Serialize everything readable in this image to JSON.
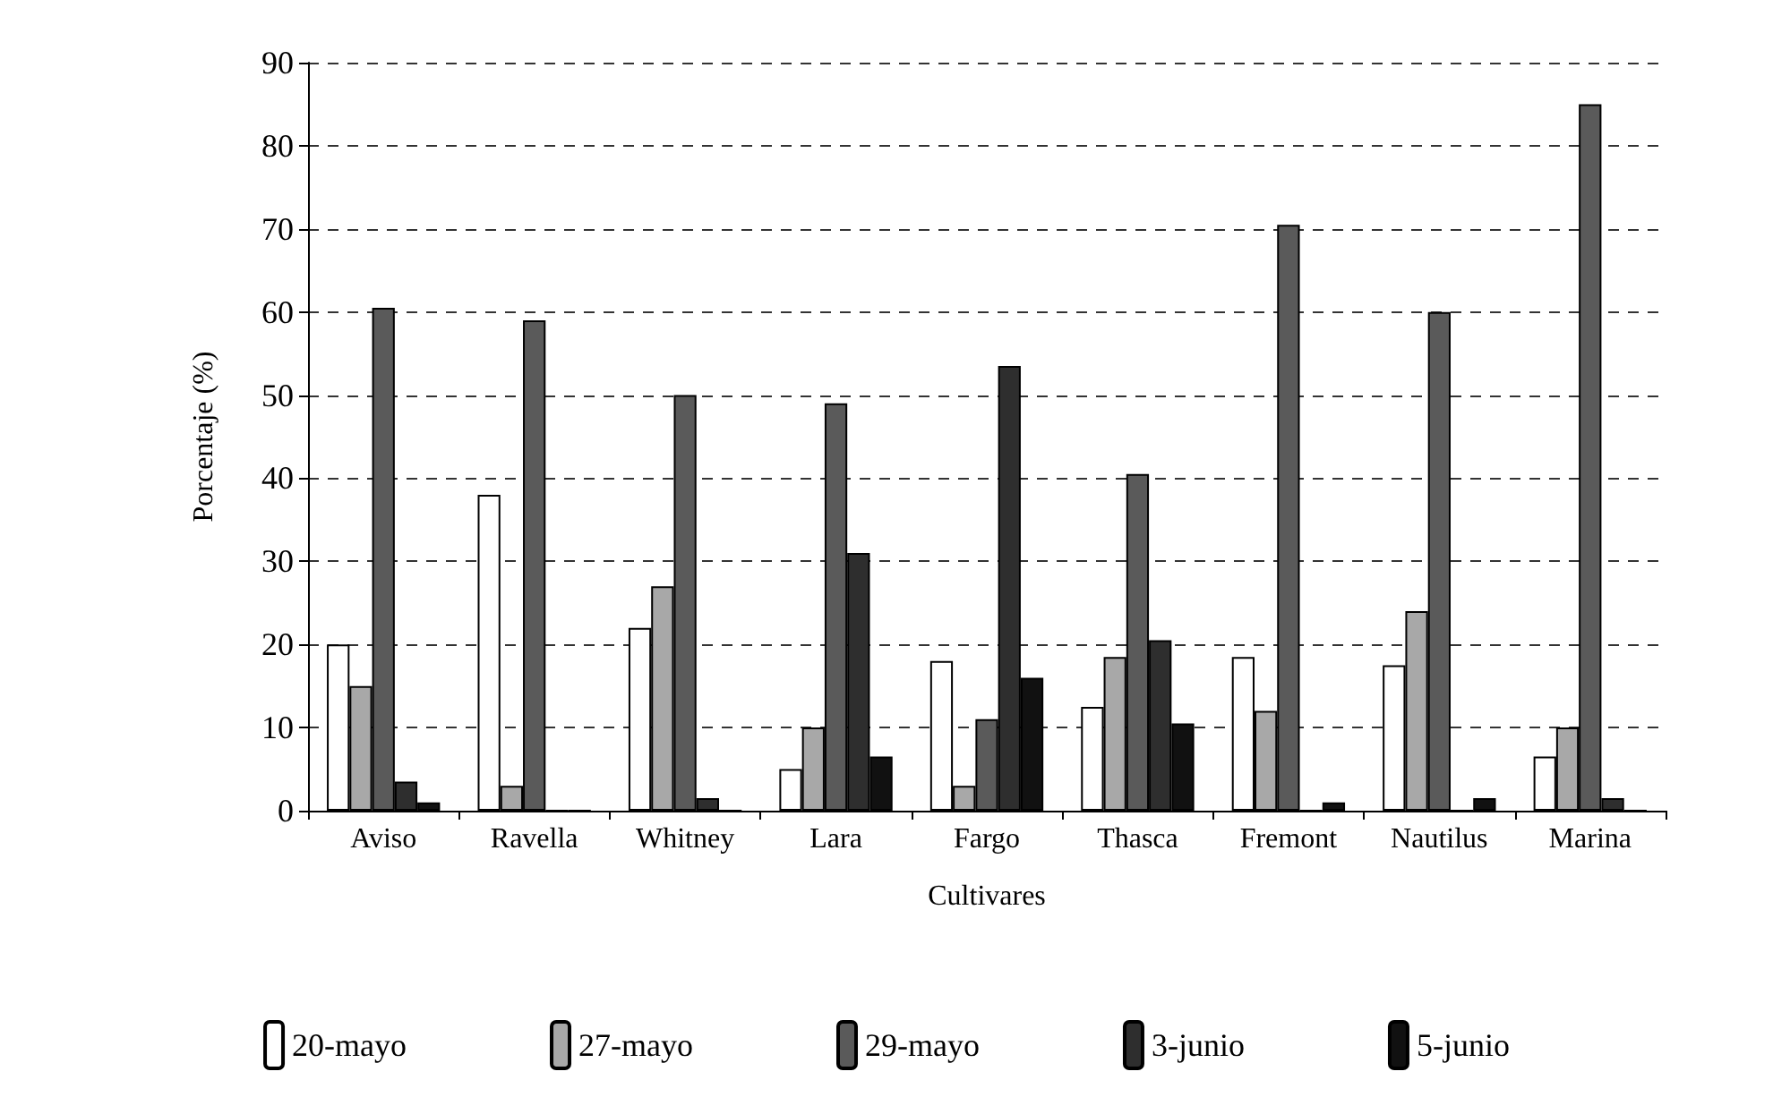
{
  "chart_data": {
    "type": "bar",
    "xlabel": "Cultivares",
    "ylabel": "Porcentaje (%)",
    "categories": [
      "Aviso",
      "Ravella",
      "Whitney",
      "Lara",
      "Fargo",
      "Thasca",
      "Fremont",
      "Nautilus",
      "Marina"
    ],
    "series": [
      {
        "name": "20-mayo",
        "color": "#ffffff",
        "values": [
          20,
          38,
          22,
          5,
          18,
          12.5,
          18.5,
          17.5,
          6.5
        ]
      },
      {
        "name": "27-mayo",
        "color": "#a8a8a8",
        "values": [
          15,
          3,
          27,
          10,
          3,
          18.5,
          12,
          24,
          10
        ]
      },
      {
        "name": "29-mayo",
        "color": "#5a5a5a",
        "values": [
          60.5,
          59,
          50,
          49,
          11,
          40.5,
          70.5,
          60,
          85
        ]
      },
      {
        "name": "3-junio",
        "color": "#2e2e2e",
        "values": [
          3.5,
          0,
          1.5,
          31,
          53.5,
          20.5,
          0,
          0,
          1.5
        ]
      },
      {
        "name": "5-junio",
        "color": "#111111",
        "values": [
          1,
          0,
          0,
          6.5,
          16,
          10.5,
          1,
          1.5,
          0
        ]
      }
    ],
    "ylim": [
      0,
      90
    ],
    "yticks": [
      0,
      10,
      20,
      30,
      40,
      50,
      60,
      70,
      80,
      90
    ],
    "grid": "y",
    "legend": "bottom"
  }
}
